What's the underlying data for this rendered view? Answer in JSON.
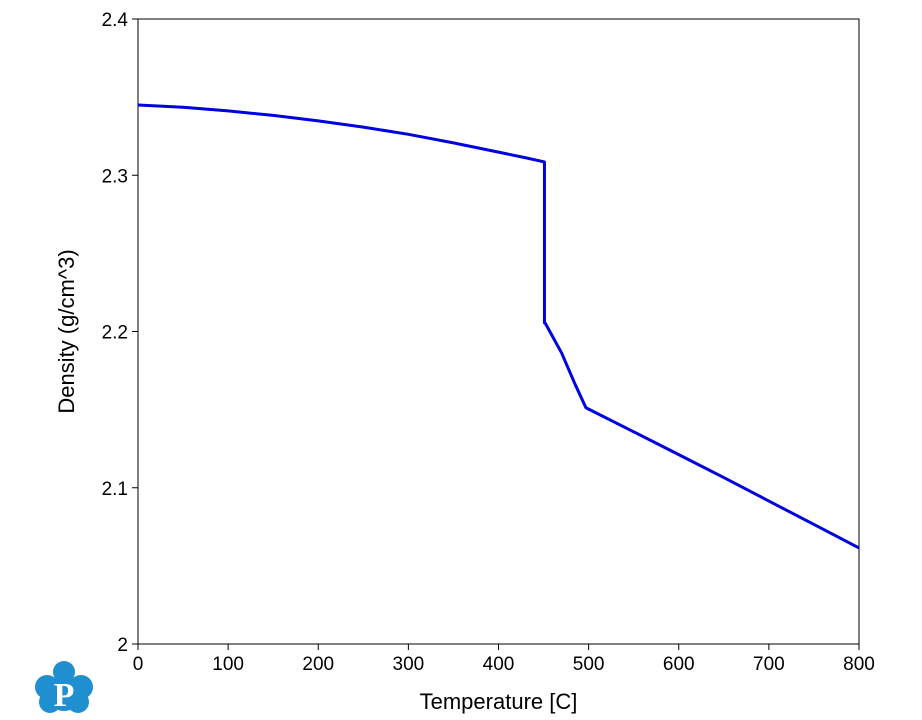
{
  "chart_data": {
    "type": "line",
    "title": "",
    "xlabel": "Temperature [C]",
    "ylabel": "Density (g/cm^3)",
    "xlim": [
      0,
      800
    ],
    "ylim": [
      2,
      2.4
    ],
    "xticks": [
      "0",
      "100",
      "200",
      "300",
      "400",
      "500",
      "600",
      "700",
      "800"
    ],
    "yticks": [
      "2",
      "2.1",
      "2.2",
      "2.3",
      "2.4"
    ],
    "grid": false,
    "legend": "none",
    "series": [
      {
        "color": "#0000e0",
        "x": [
          0,
          50,
          100,
          150,
          200,
          250,
          300,
          350,
          400,
          430,
          451,
          451,
          452,
          470,
          485,
          497,
          550,
          600,
          650,
          700,
          750,
          800
        ],
        "y": [
          2.345,
          2.3435,
          2.3412,
          2.3383,
          2.3348,
          2.3308,
          2.3262,
          2.3207,
          2.3148,
          2.3112,
          2.3085,
          2.2055,
          2.2052,
          2.1863,
          2.1662,
          2.1512,
          2.1358,
          2.1212,
          2.1065,
          2.0915,
          2.0765,
          2.0615
        ]
      }
    ]
  },
  "logo": {
    "icon": "p-cloud-logo-icon",
    "letter": "P",
    "color": "#1f8fd0"
  }
}
